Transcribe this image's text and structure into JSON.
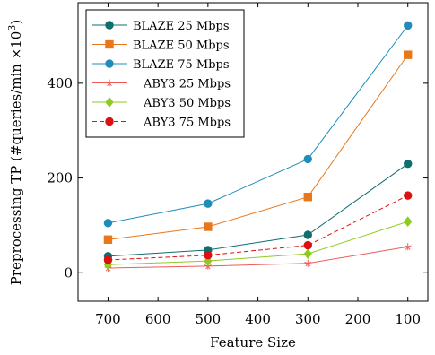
{
  "chart_data": {
    "type": "line",
    "xlabel": "Feature Size",
    "ylabel_main": "Preprocessing TP (#queries/min ×10",
    "ylabel_exp": "3",
    "ylabel_close": ")",
    "x_ticks": [
      700,
      600,
      500,
      400,
      300,
      200,
      100
    ],
    "x_ticks_text": [
      "700",
      "600",
      "500",
      "400",
      "300",
      "200",
      "100"
    ],
    "y_ticks": [
      0,
      200,
      400
    ],
    "y_ticks_text": [
      "0",
      "200",
      "400"
    ],
    "xlim": [
      760,
      60
    ],
    "ylim": [
      -60,
      570
    ],
    "x_reversed": true,
    "grid": false,
    "legend_position": "upper-left",
    "x": [
      700,
      500,
      300,
      100
    ],
    "series": [
      {
        "name": "BLAZE 25 Mbps",
        "values": [
          35,
          48,
          80,
          230
        ],
        "color": "#0f6e6e",
        "marker": "circle",
        "dash": "solid"
      },
      {
        "name": "BLAZE 50 Mbps",
        "values": [
          70,
          97,
          160,
          460
        ],
        "color": "#e8771a",
        "marker": "square",
        "dash": "solid"
      },
      {
        "name": "BLAZE 75 Mbps",
        "values": [
          105,
          146,
          240,
          522
        ],
        "color": "#1f8db7",
        "marker": "circle",
        "dash": "solid"
      },
      {
        "name": "ABY3 25 Mbps",
        "values": [
          10,
          14,
          20,
          55
        ],
        "color": "#ee5a5a",
        "marker": "star",
        "dash": "solid"
      },
      {
        "name": "ABY3 50 Mbps",
        "values": [
          17,
          25,
          40,
          108
        ],
        "color": "#8dcc1e",
        "marker": "diamond",
        "dash": "solid"
      },
      {
        "name": "ABY3 75 Mbps",
        "values": [
          27,
          37,
          58,
          163
        ],
        "color": "#dd1111",
        "marker": "circle",
        "dash": "dashed"
      }
    ]
  }
}
